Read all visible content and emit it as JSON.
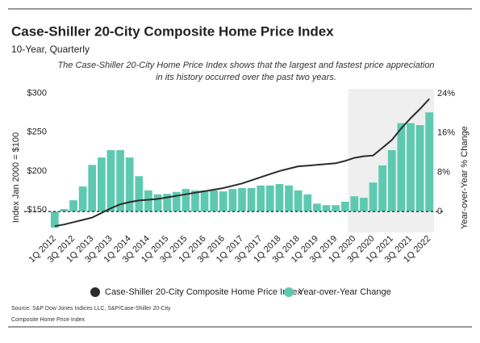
{
  "chart_data": {
    "type": "bar-line",
    "title": "Case-Shiller 20-City Composite Home Price Index",
    "subtitle": "10-Year, Quarterly",
    "annotation": "The Case-Shiller 20-City Home Price Index shows that the largest and fastest price appreciation in its history occurred over the past two years.",
    "ylabel": "Index Jan 2000 = $100",
    "y2label": "Year-over-Year % Change",
    "source": "Source:  S&P Dow Jones Indices LLC, S&P/Case-Shiller 20-City Composite Home Price Index",
    "categories": [
      "1Q 2012",
      null,
      "3Q 2012",
      null,
      "1Q 2013",
      null,
      "3Q 2013",
      null,
      "1Q 2014",
      null,
      "3Q 2014",
      null,
      "1Q 2015",
      null,
      "3Q 2015",
      null,
      "1Q 2016",
      null,
      "3Q 2016",
      null,
      "1Q 2017",
      null,
      "3Q 2017",
      null,
      "1Q 2018",
      null,
      "3Q 2018",
      null,
      "1Q 2019",
      null,
      "3Q 2019",
      null,
      "1Q 2020",
      null,
      "3Q 2020",
      null,
      "1Q 2021",
      null,
      "3Q 2021",
      null,
      "1Q 2022"
    ],
    "series": [
      {
        "name": "Case-Shiller 20-City Composite Home Price Index",
        "type": "line",
        "color": "#2b2b2b",
        "values": [
          129,
          131,
          134,
          137,
          140,
          146,
          152,
          157,
          160,
          162,
          163,
          164,
          166,
          168,
          170,
          172,
          174,
          176,
          178,
          181,
          184,
          188,
          192,
          196,
          200,
          203,
          206,
          207,
          208,
          209,
          210,
          213,
          217,
          219,
          220,
          230,
          240,
          255,
          268,
          280,
          293
        ]
      },
      {
        "name": "Year-over-Year Change",
        "type": "bar",
        "axis": "y2",
        "color": "#5ec9b1",
        "values": [
          -3.3,
          0.5,
          2.3,
          5.1,
          9.5,
          11,
          12.5,
          12.5,
          11,
          7.2,
          4.3,
          3.5,
          3.6,
          4,
          4.6,
          4.3,
          4.3,
          4.3,
          4.1,
          4.6,
          4.8,
          4.8,
          5.3,
          5.3,
          5.6,
          5.3,
          4.3,
          3.5,
          1.6,
          1.3,
          1.3,
          2,
          3.1,
          2.8,
          5.9,
          9.4,
          12.5,
          18,
          18,
          17.6,
          20.2
        ]
      }
    ],
    "ylim": [
      125,
      306
    ],
    "yticks": [
      {
        "value": 150,
        "label": "$150"
      },
      {
        "value": 200,
        "label": "$200"
      },
      {
        "value": 250,
        "label": "$250"
      },
      {
        "value": 300,
        "label": "$300"
      }
    ],
    "y2lim": [
      -3.6,
      25
    ],
    "y2ticks": [
      0,
      {
        "value": 8,
        "label": "8%"
      },
      {
        "value": 16,
        "label": "16%"
      },
      {
        "value": 24,
        "label": "24%"
      }
    ]
  }
}
